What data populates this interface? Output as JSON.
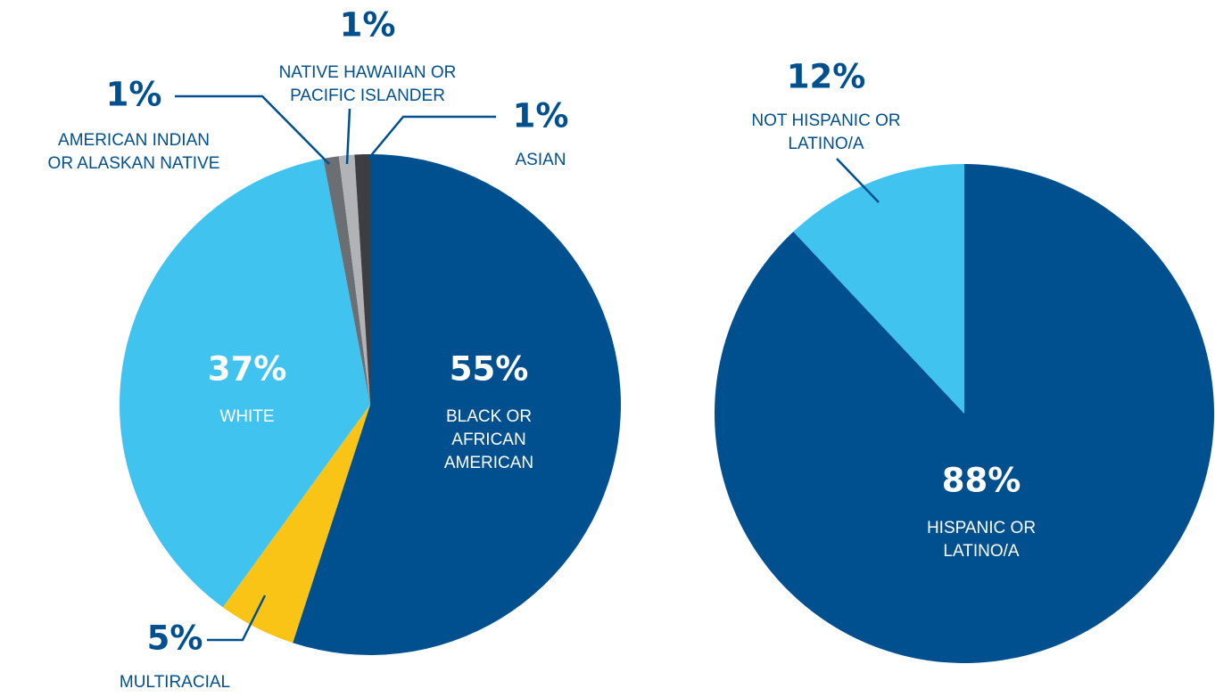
{
  "chart_data": [
    {
      "type": "pie",
      "title": "",
      "slices": [
        {
          "name": "BLACK OR AFRICAN AMERICAN",
          "value": 55,
          "label_pct": "55%",
          "label_lines": [
            "BLACK OR",
            "AFRICAN",
            "AMERICAN"
          ],
          "color": "#00508f",
          "text_color": "#ffffff"
        },
        {
          "name": "MULTIRACIAL",
          "value": 5,
          "label_pct": "5%",
          "label_lines": [
            "MULTIRACIAL"
          ],
          "color": "#f9c415",
          "text_color": "#00508f"
        },
        {
          "name": "WHITE",
          "value": 37,
          "label_pct": "37%",
          "label_lines": [
            "WHITE"
          ],
          "color": "#41c3f0",
          "text_color": "#ffffff"
        },
        {
          "name": "AMERICAN INDIAN OR ALASKAN NATIVE",
          "value": 1,
          "label_pct": "1%",
          "label_lines": [
            "AMERICAN INDIAN",
            "OR ALASKAN NATIVE"
          ],
          "color": "#6b6e72",
          "text_color": "#00508f"
        },
        {
          "name": "NATIVE HAWAIIAN OR PACIFIC ISLANDER",
          "value": 1,
          "label_pct": "1%",
          "label_lines": [
            "NATIVE HAWAIIAN OR",
            "PACIFIC ISLANDER"
          ],
          "color": "#b1b3b6",
          "text_color": "#00508f"
        },
        {
          "name": "ASIAN",
          "value": 1,
          "label_pct": "1%",
          "label_lines": [
            "ASIAN"
          ],
          "color": "#3c3e42",
          "text_color": "#00508f"
        }
      ]
    },
    {
      "type": "pie",
      "title": "",
      "slices": [
        {
          "name": "HISPANIC OR LATINO/A",
          "value": 88,
          "label_pct": "88%",
          "label_lines": [
            "HISPANIC OR",
            "LATINO/A"
          ],
          "color": "#00508f",
          "text_color": "#ffffff"
        },
        {
          "name": "NOT HISPANIC OR LATINO/A",
          "value": 12,
          "label_pct": "12%",
          "label_lines": [
            "NOT HISPANIC OR",
            "LATINO/A"
          ],
          "color": "#41c3f0",
          "text_color": "#00508f"
        }
      ]
    }
  ]
}
